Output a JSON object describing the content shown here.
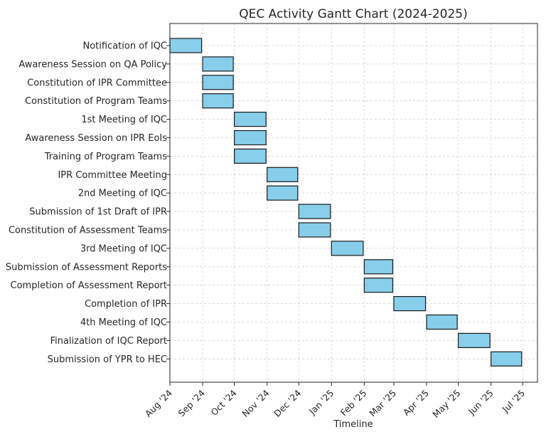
{
  "chart_data": {
    "type": "bar",
    "orientation": "horizontal",
    "title": "QEC Activity Gantt Chart (2024-2025)",
    "xlabel": "Timeline",
    "ylabel": "",
    "grid": true,
    "x_ticks": [
      "Aug '24",
      "Sep '24",
      "Oct '24",
      "Nov '24",
      "Dec '24",
      "Jan '25",
      "Feb '25",
      "Mar '25",
      "Apr '25",
      "May '25",
      "Jun '25",
      "Jul '25"
    ],
    "x_tick_dates": [
      "2024-08-01",
      "2024-09-01",
      "2024-10-01",
      "2024-11-01",
      "2024-12-01",
      "2025-01-01",
      "2025-02-01",
      "2025-03-01",
      "2025-04-01",
      "2025-05-01",
      "2025-06-01",
      "2025-07-01"
    ],
    "xlim": [
      "2024-08-01",
      "2025-07-15"
    ],
    "tasks": [
      {
        "name": "Notification of IQC",
        "start": "2024-08-01",
        "end": "2024-08-31"
      },
      {
        "name": "Awareness Session on QA Policy",
        "start": "2024-09-01",
        "end": "2024-09-30"
      },
      {
        "name": "Constitution of IPR Committee",
        "start": "2024-09-01",
        "end": "2024-09-30"
      },
      {
        "name": "Constitution of Program Teams",
        "start": "2024-09-01",
        "end": "2024-09-30"
      },
      {
        "name": "1st Meeting of IQC",
        "start": "2024-10-01",
        "end": "2024-10-31"
      },
      {
        "name": "Awareness Session on IPR EoIs",
        "start": "2024-10-01",
        "end": "2024-10-31"
      },
      {
        "name": "Training of Program Teams",
        "start": "2024-10-01",
        "end": "2024-10-31"
      },
      {
        "name": "IPR Committee Meeting",
        "start": "2024-11-01",
        "end": "2024-11-30"
      },
      {
        "name": "2nd Meeting of IQC",
        "start": "2024-11-01",
        "end": "2024-11-30"
      },
      {
        "name": "Submission of 1st Draft of IPR",
        "start": "2024-12-01",
        "end": "2024-12-31"
      },
      {
        "name": "Constitution of Assessment Teams",
        "start": "2024-12-01",
        "end": "2024-12-31"
      },
      {
        "name": "3rd Meeting of IQC",
        "start": "2025-01-01",
        "end": "2025-01-31"
      },
      {
        "name": "Submission of Assessment Reports",
        "start": "2025-02-01",
        "end": "2025-02-28"
      },
      {
        "name": "Completion of Assessment Report",
        "start": "2025-02-01",
        "end": "2025-02-28"
      },
      {
        "name": "Completion of IPR",
        "start": "2025-03-01",
        "end": "2025-03-31"
      },
      {
        "name": "4th Meeting of IQC",
        "start": "2025-04-01",
        "end": "2025-04-30"
      },
      {
        "name": "Finalization of IQC Report",
        "start": "2025-05-01",
        "end": "2025-05-31"
      },
      {
        "name": "Submission of YPR to HEC",
        "start": "2025-06-01",
        "end": "2025-06-30"
      }
    ],
    "colors": {
      "bar_fill": "#87ceeb",
      "bar_edge": "#1a1a1a",
      "grid": "#cfcfcf"
    }
  }
}
